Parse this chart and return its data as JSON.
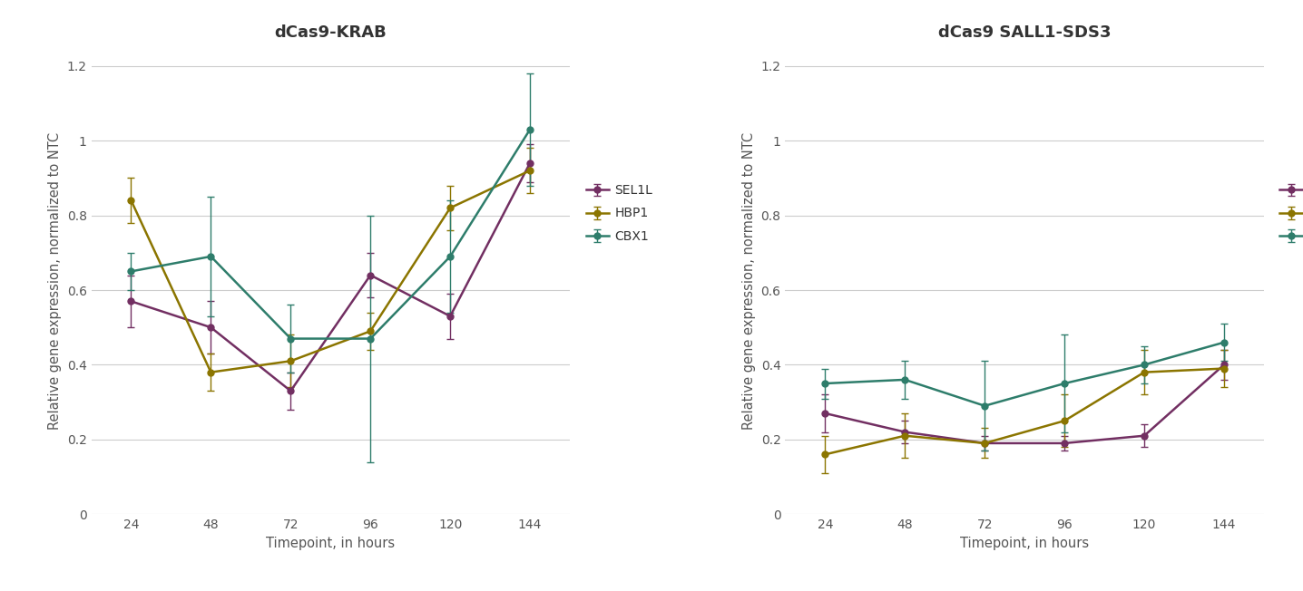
{
  "timepoints": [
    24,
    48,
    72,
    96,
    120,
    144
  ],
  "krab": {
    "title": "dCas9-KRAB",
    "SEL1L": {
      "y": [
        0.57,
        0.5,
        0.33,
        0.64,
        0.53,
        0.94
      ],
      "yerr": [
        0.07,
        0.07,
        0.05,
        0.06,
        0.06,
        0.05
      ]
    },
    "HBP1": {
      "y": [
        0.84,
        0.38,
        0.41,
        0.49,
        0.82,
        0.92
      ],
      "yerr": [
        0.06,
        0.05,
        0.07,
        0.05,
        0.06,
        0.06
      ]
    },
    "CBX1": {
      "y": [
        0.65,
        0.69,
        0.47,
        0.47,
        0.69,
        1.03
      ],
      "yerr": [
        0.05,
        0.16,
        0.09,
        0.33,
        0.15,
        0.15
      ]
    }
  },
  "sall1": {
    "title": "dCas9 SALL1-SDS3",
    "SEL1L": {
      "y": [
        0.27,
        0.22,
        0.19,
        0.19,
        0.21,
        0.4
      ],
      "yerr": [
        0.05,
        0.03,
        0.02,
        0.02,
        0.03,
        0.04
      ]
    },
    "HBP1": {
      "y": [
        0.16,
        0.21,
        0.19,
        0.25,
        0.38,
        0.39
      ],
      "yerr": [
        0.05,
        0.06,
        0.04,
        0.07,
        0.06,
        0.05
      ]
    },
    "CBX1": {
      "y": [
        0.35,
        0.36,
        0.29,
        0.35,
        0.4,
        0.46
      ],
      "yerr": [
        0.04,
        0.05,
        0.12,
        0.13,
        0.05,
        0.05
      ]
    }
  },
  "colors": {
    "SEL1L": "#722F62",
    "HBP1": "#8B7500",
    "CBX1": "#2E7D6B"
  },
  "ylabel": "Relative gene expression, normalized to NTC",
  "xlabel": "Timepoint, in hours",
  "ylim": [
    0,
    1.25
  ],
  "yticks": [
    0,
    0.2,
    0.4,
    0.6,
    0.8,
    1.0,
    1.2
  ],
  "background_color": "#ffffff",
  "grid_color": "#cccccc",
  "title_fontsize": 13,
  "label_fontsize": 10.5,
  "tick_fontsize": 10,
  "legend_fontsize": 10
}
